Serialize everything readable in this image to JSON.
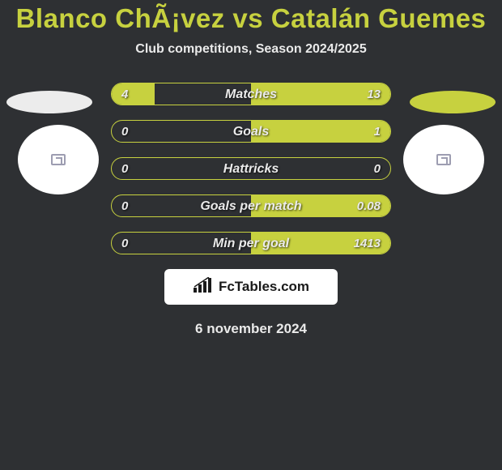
{
  "title": "Blanco ChÃ¡vez vs Catalán Guemes",
  "subtitle": "Club competitions, Season 2024/2025",
  "ellipse_colors": {
    "left": "#ececec",
    "right": "#c7d13f"
  },
  "circle_bg": "#ffffff",
  "bars": {
    "border_color": "#c7d13f",
    "fill_color": "#c7d13f",
    "rows": [
      {
        "label": "Matches",
        "left": "4",
        "right": "13",
        "left_pct": 23.5,
        "right_pct": 76.5
      },
      {
        "label": "Goals",
        "left": "0",
        "right": "1",
        "left_pct": 0,
        "right_pct": 100
      },
      {
        "label": "Hattricks",
        "left": "0",
        "right": "0",
        "left_pct": 0,
        "right_pct": 0
      },
      {
        "label": "Goals per match",
        "left": "0",
        "right": "0.08",
        "left_pct": 0,
        "right_pct": 100
      },
      {
        "label": "Min per goal",
        "left": "0",
        "right": "1413",
        "left_pct": 0,
        "right_pct": 100
      }
    ]
  },
  "brand": {
    "text": "FcTables.com"
  },
  "date": "6 november 2024",
  "colors": {
    "background": "#2e3033",
    "text_primary": "#eaeaea",
    "accent": "#c7d13f"
  }
}
